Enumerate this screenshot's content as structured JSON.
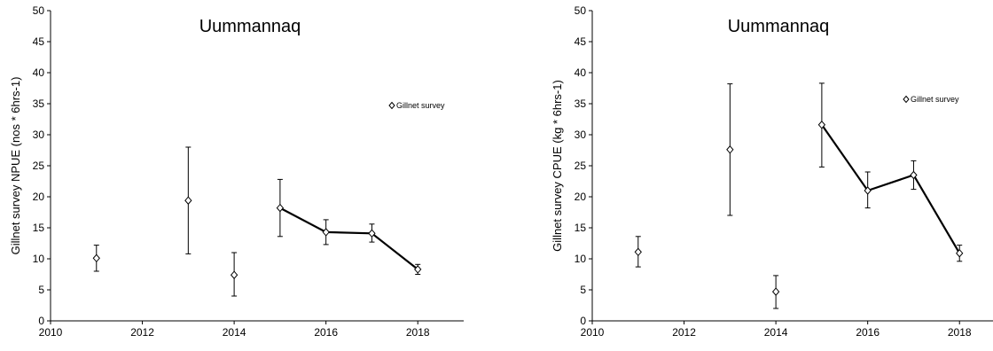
{
  "chart_data": [
    {
      "type": "scatter",
      "title": "Uummannaq",
      "xlabel": "",
      "ylabel": "Gillnet survey NPUE (nos * 6hrs-1)",
      "xlim": [
        2010,
        2019
      ],
      "ylim": [
        0,
        50
      ],
      "xticks": [
        2010,
        2012,
        2014,
        2016,
        2018
      ],
      "yticks": [
        0,
        5,
        10,
        15,
        20,
        25,
        30,
        35,
        40,
        45,
        50
      ],
      "grid": false,
      "legend": "right",
      "series": [
        {
          "name": "Gillnet survey",
          "marker": "open-diamond",
          "x": [
            2011,
            2013,
            2014,
            2015,
            2016,
            2017,
            2018
          ],
          "y": [
            10.1,
            19.4,
            7.4,
            18.2,
            14.3,
            14.1,
            8.3
          ],
          "err_low": [
            8.0,
            10.8,
            4.0,
            13.6,
            12.3,
            12.7,
            7.5
          ],
          "err_high": [
            12.2,
            28.0,
            11.0,
            22.8,
            16.3,
            15.6,
            9.1
          ]
        }
      ],
      "trend_line": {
        "x": [
          2015,
          2016,
          2017,
          2018
        ],
        "y": [
          18.2,
          14.3,
          14.1,
          8.3
        ]
      }
    },
    {
      "type": "scatter",
      "title": "Uummannaq",
      "xlabel": "",
      "ylabel": "Gillnet survey CPUE (kg * 6hrs-1)",
      "xlim": [
        2010,
        2019
      ],
      "ylim": [
        0,
        50
      ],
      "xticks": [
        2010,
        2012,
        2014,
        2016,
        2018
      ],
      "yticks": [
        0,
        5,
        10,
        15,
        20,
        25,
        30,
        35,
        40,
        45,
        50
      ],
      "grid": false,
      "legend": "right",
      "series": [
        {
          "name": "Gillnet survey",
          "marker": "open-diamond",
          "x": [
            2011,
            2013,
            2014,
            2015,
            2016,
            2017,
            2018
          ],
          "y": [
            11.1,
            27.6,
            4.7,
            31.6,
            21.0,
            23.5,
            10.9
          ],
          "err_low": [
            8.7,
            17.0,
            2.0,
            24.8,
            18.2,
            21.2,
            9.6
          ],
          "err_high": [
            13.6,
            38.2,
            7.3,
            38.3,
            24.0,
            25.8,
            12.2
          ]
        }
      ],
      "trend_line": {
        "x": [
          2015,
          2016,
          2017,
          2018
        ],
        "y": [
          31.6,
          21.0,
          23.5,
          10.9
        ]
      }
    }
  ]
}
